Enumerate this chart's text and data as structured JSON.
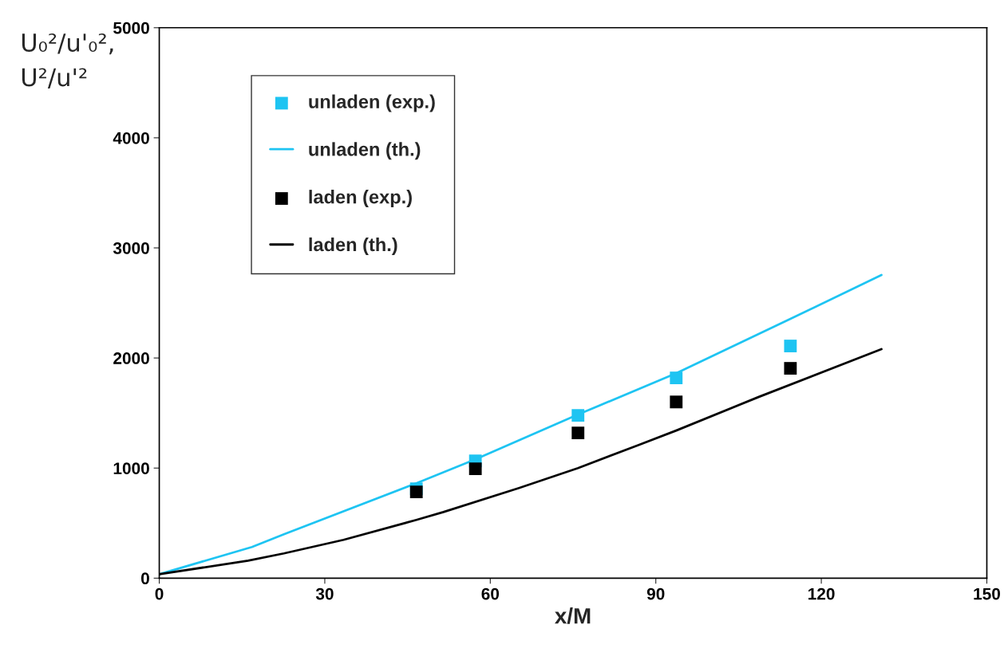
{
  "chart_data": {
    "type": "line",
    "xlabel": "x/M",
    "ylabel": "U₀²/u'₀²,\nU²/u'²",
    "xlim": [
      0,
      150
    ],
    "xticks": [
      0,
      30,
      60,
      90,
      120,
      150
    ],
    "ylim": [
      0,
      5000
    ],
    "yticks": [
      0,
      1000,
      2000,
      3000,
      4000,
      5000
    ],
    "grid": false,
    "legend": "top left",
    "series": [
      {
        "name": "unladen (exp.)",
        "type": "scatter",
        "marker": "square",
        "color": "#1ec4f2",
        "x": [
          46.6,
          57.3,
          75.9,
          93.7,
          114.4
        ],
        "values": [
          812,
          1065,
          1478,
          1819,
          2109
        ]
      },
      {
        "name": "unladen (th.)",
        "marker": "none",
        "color": "#1ec4f2",
        "x": [
          0,
          16.8,
          22.6,
          46.6,
          57.3,
          75.9,
          93.7,
          114.4,
          130.9
        ],
        "values": [
          36,
          283,
          399,
          862,
          1080,
          1486,
          1862,
          2355,
          2754
        ]
      },
      {
        "name": "laden (exp.)",
        "type": "scatter",
        "marker": "square",
        "color": "#000000",
        "x": [
          46.6,
          57.3,
          75.9,
          93.7,
          114.4
        ],
        "values": [
          783,
          993,
          1319,
          1601,
          1906
        ]
      },
      {
        "name": "laden (th.)",
        "marker": "none",
        "color": "#000000",
        "x": [
          0,
          16.1,
          22.6,
          33.4,
          46.6,
          51.5,
          65.2,
          75.9,
          86.9,
          93.7,
          108.6,
          130.9
        ],
        "values": [
          36,
          159,
          225,
          348,
          529,
          601,
          819,
          1000,
          1210,
          1341,
          1645,
          2080
        ]
      }
    ]
  }
}
